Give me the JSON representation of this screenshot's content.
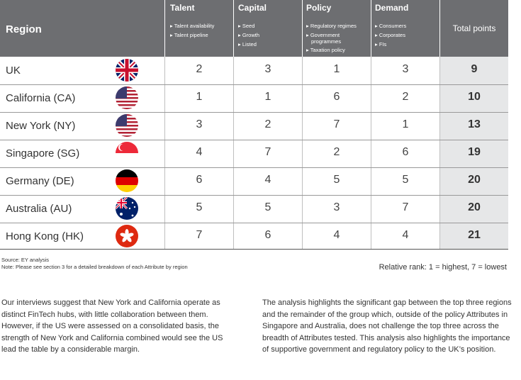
{
  "header": {
    "region_label": "Region",
    "total_label": "Total points",
    "categories": [
      {
        "title": "Talent",
        "items": [
          "▸ Talent availability",
          "▸ Talent pipeline"
        ]
      },
      {
        "title": "Capital",
        "items": [
          "▸ Seed",
          "▸ Growth",
          "▸ Listed"
        ]
      },
      {
        "title": "Policy",
        "items": [
          "▸ Regulatory regimes",
          "▸ Government",
          "programmes",
          "▸ Taxation policy"
        ]
      },
      {
        "title": "Demand",
        "items": [
          "▸ Consumers",
          "▸ Corporates",
          "▸ FIs"
        ]
      }
    ]
  },
  "rows": [
    {
      "region": "UK",
      "flag": "uk-flag-icon",
      "talent": "2",
      "capital": "3",
      "policy": "1",
      "demand": "3",
      "total": "9"
    },
    {
      "region": "California (CA)",
      "flag": "us-flag-icon",
      "talent": "1",
      "capital": "1",
      "policy": "6",
      "demand": "2",
      "total": "10"
    },
    {
      "region": "New York (NY)",
      "flag": "us-flag-icon",
      "talent": "3",
      "capital": "2",
      "policy": "7",
      "demand": "1",
      "total": "13"
    },
    {
      "region": "Singapore (SG)",
      "flag": "singapore-flag-icon",
      "talent": "4",
      "capital": "7",
      "policy": "2",
      "demand": "6",
      "total": "19"
    },
    {
      "region": "Germany (DE)",
      "flag": "germany-flag-icon",
      "talent": "6",
      "capital": "4",
      "policy": "5",
      "demand": "5",
      "total": "20"
    },
    {
      "region": "Australia (AU)",
      "flag": "australia-flag-icon",
      "talent": "5",
      "capital": "5",
      "policy": "3",
      "demand": "7",
      "total": "20"
    },
    {
      "region": "Hong Kong (HK)",
      "flag": "hong-kong-flag-icon",
      "talent": "7",
      "capital": "6",
      "policy": "4",
      "demand": "4",
      "total": "21"
    }
  ],
  "footer": {
    "source": "Source: EY analysis",
    "note": "Note: Please see section 3 for a detailed breakdown of each Attribute by region",
    "rank_legend": "Relative rank: 1 = highest, 7 = lowest"
  },
  "paragraphs": {
    "left": "Our interviews suggest that New York and California operate as distinct FinTech hubs, with little collaboration between them. However, if the US were assessed on a consolidated basis, the strength of New York and California combined would see the US lead the table by a considerable margin.",
    "right": "The analysis highlights the significant gap between the top three regions and the remainder of the group which, outside of the policy Attributes in Singapore and Australia, does not challenge the top three across the breadth of Attributes tested. This analysis also highlights the importance of supportive government and regulatory policy to the UK’s position."
  },
  "colors": {
    "header_bg": "#6d6e71",
    "total_column_bg": "#e6e7e8",
    "row_line": "#999999"
  }
}
